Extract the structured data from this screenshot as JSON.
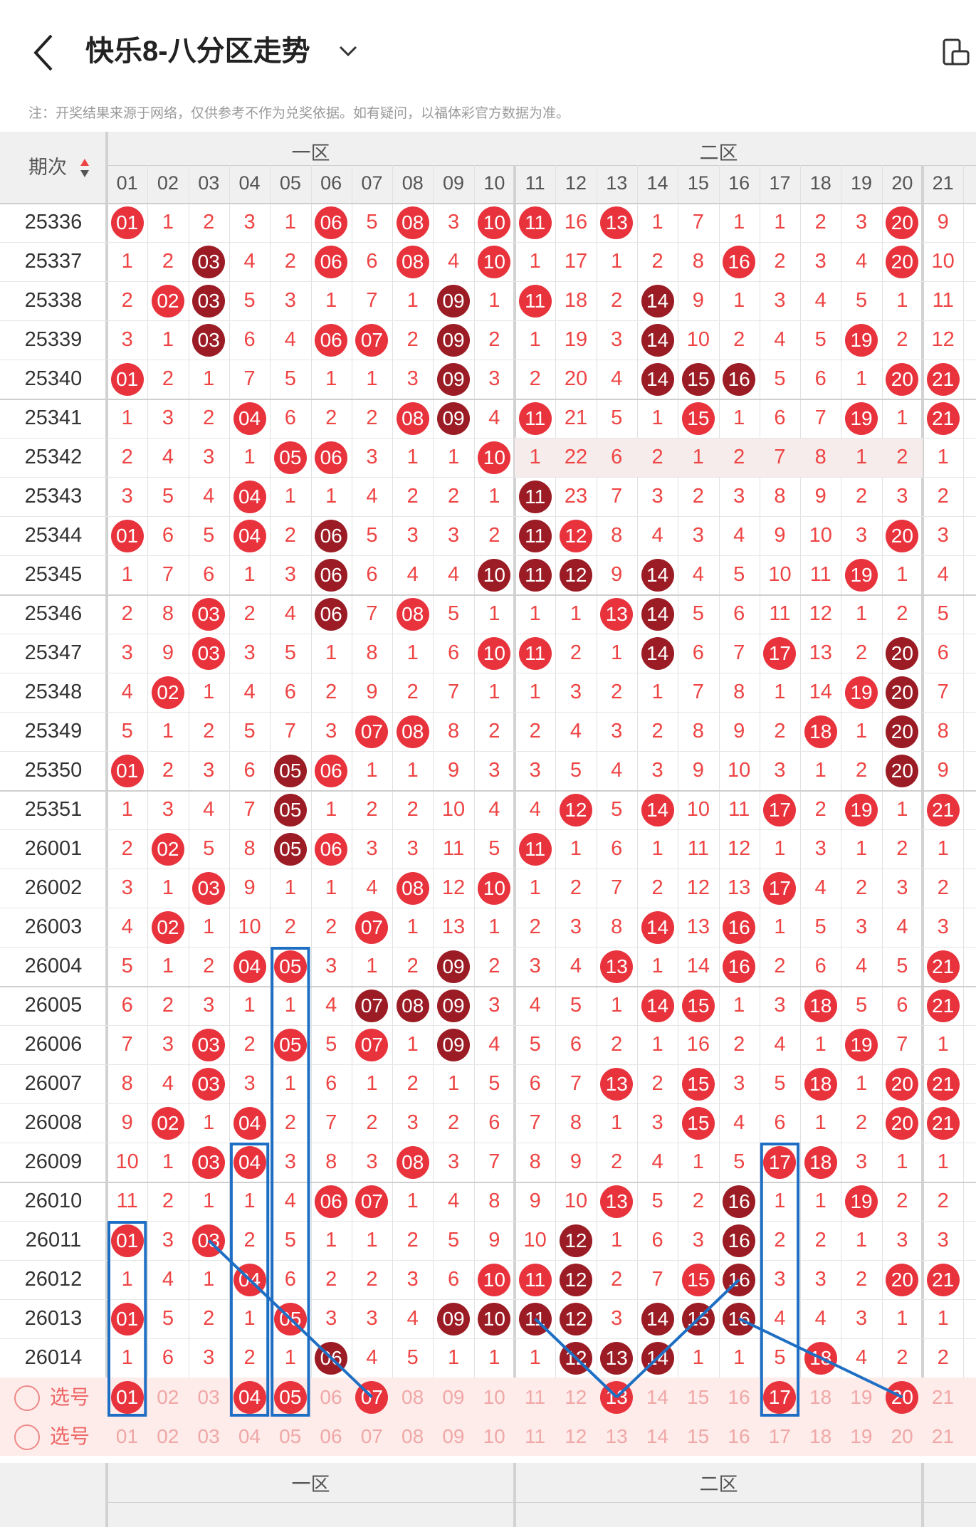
{
  "header": {
    "title": "快乐8-八分区走势",
    "note": "注：开奖结果来源于网络，仅供参考不作为兑奖依据。如有疑问，以福体彩官方数据为准。"
  },
  "table": {
    "period_label": "期次",
    "zone1_label": "一区",
    "zone2_label": "二区",
    "columns": [
      "01",
      "02",
      "03",
      "04",
      "05",
      "06",
      "07",
      "08",
      "09",
      "10",
      "11",
      "12",
      "13",
      "14",
      "15",
      "16",
      "17",
      "18",
      "19",
      "20",
      "21"
    ],
    "rows": [
      {
        "period": "25336",
        "cells": [
          "01",
          "1",
          "2",
          "3",
          "1",
          "06",
          "5",
          "08",
          "3",
          "10",
          "11",
          "16",
          "13",
          "1",
          "7",
          "1",
          "1",
          "2",
          "3",
          "20",
          "9"
        ]
      },
      {
        "period": "25337",
        "cells": [
          "1",
          "2",
          "03",
          "4",
          "2",
          "06",
          "6",
          "08",
          "4",
          "10",
          "1",
          "17",
          "1",
          "2",
          "8",
          "16",
          "2",
          "3",
          "4",
          "20",
          "10"
        ]
      },
      {
        "period": "25338",
        "cells": [
          "2",
          "02",
          "03",
          "5",
          "3",
          "1",
          "7",
          "1",
          "09",
          "1",
          "11",
          "18",
          "2",
          "14",
          "9",
          "1",
          "3",
          "4",
          "5",
          "1",
          "11"
        ]
      },
      {
        "period": "25339",
        "cells": [
          "3",
          "1",
          "03",
          "6",
          "4",
          "06",
          "07",
          "2",
          "09",
          "2",
          "1",
          "19",
          "3",
          "14",
          "10",
          "2",
          "4",
          "5",
          "19",
          "2",
          "12"
        ]
      },
      {
        "period": "25340",
        "cells": [
          "01",
          "2",
          "1",
          "7",
          "5",
          "1",
          "1",
          "3",
          "09",
          "3",
          "2",
          "20",
          "4",
          "14",
          "15",
          "16",
          "5",
          "6",
          "1",
          "20",
          "21"
        ]
      },
      {
        "period": "25341",
        "cells": [
          "1",
          "3",
          "2",
          "04",
          "6",
          "2",
          "2",
          "08",
          "09",
          "4",
          "11",
          "21",
          "5",
          "1",
          "15",
          "1",
          "6",
          "7",
          "19",
          "1",
          "21"
        ]
      },
      {
        "period": "25342",
        "cells": [
          "2",
          "4",
          "3",
          "1",
          "05",
          "06",
          "3",
          "1",
          "1",
          "10",
          "1",
          "22",
          "6",
          "2",
          "1",
          "2",
          "7",
          "8",
          "1",
          "2",
          "1"
        ]
      },
      {
        "period": "25343",
        "cells": [
          "3",
          "5",
          "4",
          "04",
          "1",
          "1",
          "4",
          "2",
          "2",
          "1",
          "11",
          "23",
          "7",
          "3",
          "2",
          "3",
          "8",
          "9",
          "2",
          "3",
          "2"
        ]
      },
      {
        "period": "25344",
        "cells": [
          "01",
          "6",
          "5",
          "04",
          "2",
          "06",
          "5",
          "3",
          "3",
          "2",
          "11",
          "12",
          "8",
          "4",
          "3",
          "4",
          "9",
          "10",
          "3",
          "20",
          "3"
        ]
      },
      {
        "period": "25345",
        "cells": [
          "1",
          "7",
          "6",
          "1",
          "3",
          "06",
          "6",
          "4",
          "4",
          "10",
          "11",
          "12",
          "9",
          "14",
          "4",
          "5",
          "10",
          "11",
          "19",
          "1",
          "4"
        ]
      },
      {
        "period": "25346",
        "cells": [
          "2",
          "8",
          "03",
          "2",
          "4",
          "06",
          "7",
          "08",
          "5",
          "1",
          "1",
          "1",
          "13",
          "14",
          "5",
          "6",
          "11",
          "12",
          "1",
          "2",
          "5"
        ]
      },
      {
        "period": "25347",
        "cells": [
          "3",
          "9",
          "03",
          "3",
          "5",
          "1",
          "8",
          "1",
          "6",
          "10",
          "11",
          "2",
          "1",
          "14",
          "6",
          "7",
          "17",
          "13",
          "2",
          "20",
          "6"
        ]
      },
      {
        "period": "25348",
        "cells": [
          "4",
          "02",
          "1",
          "4",
          "6",
          "2",
          "9",
          "2",
          "7",
          "1",
          "1",
          "3",
          "2",
          "1",
          "7",
          "8",
          "1",
          "14",
          "19",
          "20",
          "7"
        ]
      },
      {
        "period": "25349",
        "cells": [
          "5",
          "1",
          "2",
          "5",
          "7",
          "3",
          "07",
          "08",
          "8",
          "2",
          "2",
          "4",
          "3",
          "2",
          "8",
          "9",
          "2",
          "18",
          "1",
          "20",
          "8"
        ]
      },
      {
        "period": "25350",
        "cells": [
          "01",
          "2",
          "3",
          "6",
          "05",
          "06",
          "1",
          "1",
          "9",
          "3",
          "3",
          "5",
          "4",
          "3",
          "9",
          "10",
          "3",
          "1",
          "2",
          "20",
          "9"
        ]
      },
      {
        "period": "25351",
        "cells": [
          "1",
          "3",
          "4",
          "7",
          "05",
          "1",
          "2",
          "2",
          "10",
          "4",
          "4",
          "12",
          "5",
          "14",
          "10",
          "11",
          "17",
          "2",
          "19",
          "1",
          "21"
        ]
      },
      {
        "period": "26001",
        "cells": [
          "2",
          "02",
          "5",
          "8",
          "05",
          "06",
          "3",
          "3",
          "11",
          "5",
          "11",
          "1",
          "6",
          "1",
          "11",
          "12",
          "1",
          "3",
          "1",
          "2",
          "1"
        ]
      },
      {
        "period": "26002",
        "cells": [
          "3",
          "1",
          "03",
          "9",
          "1",
          "1",
          "4",
          "08",
          "12",
          "10",
          "1",
          "2",
          "7",
          "2",
          "12",
          "13",
          "17",
          "4",
          "2",
          "3",
          "2"
        ]
      },
      {
        "period": "26003",
        "cells": [
          "4",
          "02",
          "1",
          "10",
          "2",
          "2",
          "07",
          "1",
          "13",
          "1",
          "2",
          "3",
          "8",
          "14",
          "13",
          "16",
          "1",
          "5",
          "3",
          "4",
          "3"
        ]
      },
      {
        "period": "26004",
        "cells": [
          "5",
          "1",
          "2",
          "04",
          "05",
          "3",
          "1",
          "2",
          "09",
          "2",
          "3",
          "4",
          "13",
          "1",
          "14",
          "16",
          "2",
          "6",
          "4",
          "5",
          "21"
        ]
      },
      {
        "period": "26005",
        "cells": [
          "6",
          "2",
          "3",
          "1",
          "1",
          "4",
          "07",
          "08",
          "09",
          "3",
          "4",
          "5",
          "1",
          "14",
          "15",
          "1",
          "3",
          "18",
          "5",
          "6",
          "21"
        ]
      },
      {
        "period": "26006",
        "cells": [
          "7",
          "3",
          "03",
          "2",
          "05",
          "5",
          "07",
          "1",
          "09",
          "4",
          "5",
          "6",
          "2",
          "1",
          "16",
          "2",
          "4",
          "1",
          "19",
          "7",
          "1"
        ]
      },
      {
        "period": "26007",
        "cells": [
          "8",
          "4",
          "03",
          "3",
          "1",
          "6",
          "1",
          "2",
          "1",
          "5",
          "6",
          "7",
          "13",
          "2",
          "15",
          "3",
          "5",
          "18",
          "1",
          "20",
          "21"
        ]
      },
      {
        "period": "26008",
        "cells": [
          "9",
          "02",
          "1",
          "04",
          "2",
          "7",
          "2",
          "3",
          "2",
          "6",
          "7",
          "8",
          "1",
          "3",
          "15",
          "4",
          "6",
          "1",
          "2",
          "20",
          "21"
        ]
      },
      {
        "period": "26009",
        "cells": [
          "10",
          "1",
          "03",
          "04",
          "3",
          "8",
          "3",
          "08",
          "3",
          "7",
          "8",
          "9",
          "2",
          "4",
          "1",
          "5",
          "17",
          "18",
          "3",
          "1",
          "1"
        ]
      },
      {
        "period": "26010",
        "cells": [
          "11",
          "2",
          "1",
          "1",
          "4",
          "06",
          "07",
          "1",
          "4",
          "8",
          "9",
          "10",
          "13",
          "5",
          "2",
          "16",
          "1",
          "1",
          "19",
          "2",
          "2"
        ]
      },
      {
        "period": "26011",
        "cells": [
          "01",
          "3",
          "03",
          "2",
          "5",
          "1",
          "1",
          "2",
          "5",
          "9",
          "10",
          "12",
          "1",
          "6",
          "3",
          "16",
          "2",
          "2",
          "1",
          "3",
          "3"
        ]
      },
      {
        "period": "26012",
        "cells": [
          "1",
          "4",
          "1",
          "04",
          "6",
          "2",
          "2",
          "3",
          "6",
          "10",
          "11",
          "12",
          "2",
          "7",
          "15",
          "16",
          "3",
          "3",
          "2",
          "20",
          "21"
        ]
      },
      {
        "period": "26013",
        "cells": [
          "01",
          "5",
          "2",
          "1",
          "05",
          "3",
          "3",
          "4",
          "09",
          "10",
          "11",
          "12",
          "3",
          "14",
          "15",
          "16",
          "4",
          "4",
          "3",
          "1",
          "1"
        ]
      },
      {
        "period": "26014",
        "cells": [
          "1",
          "6",
          "3",
          "2",
          "1",
          "06",
          "4",
          "5",
          "1",
          "1",
          "1",
          "12",
          "13",
          "14",
          "1",
          "1",
          "5",
          "18",
          "4",
          "2",
          "2"
        ]
      }
    ],
    "dark_balls": [
      "25337-03",
      "25338-03",
      "25339-03",
      "25338-09",
      "25339-09",
      "25340-09",
      "25341-09",
      "25338-14",
      "25339-14",
      "25340-14",
      "25340-15",
      "25340-16",
      "25343-11",
      "25344-11",
      "25345-11",
      "25344-06",
      "25345-06",
      "25346-06",
      "25345-10",
      "25345-12",
      "25345-14",
      "25346-14",
      "25347-14",
      "25347-20",
      "25348-20",
      "25349-20",
      "25350-20",
      "25350-05",
      "25351-05",
      "26001-05",
      "26004-09",
      "26005-07",
      "26005-08",
      "26005-09",
      "26006-09",
      "26010-16",
      "26011-16",
      "26012-16",
      "26013-16",
      "26013-15",
      "26011-12",
      "26012-12",
      "26013-12",
      "26014-12",
      "26013-13",
      "26014-13",
      "26014-14",
      "26013-09",
      "26013-10",
      "26013-11",
      "26013-14",
      "26014-06"
    ],
    "selection_rows": [
      {
        "label": "选号",
        "values": [
          "01",
          "02",
          "03",
          "04",
          "05",
          "06",
          "07",
          "08",
          "09",
          "10",
          "11",
          "12",
          "13",
          "14",
          "15",
          "16",
          "17",
          "18",
          "19",
          "20",
          "21"
        ],
        "selected": [
          "01",
          "04",
          "05",
          "07",
          "13",
          "17",
          "20"
        ]
      },
      {
        "label": "选号",
        "values": [
          "01",
          "02",
          "03",
          "04",
          "05",
          "06",
          "07",
          "08",
          "09",
          "10",
          "11",
          "12",
          "13",
          "14",
          "15",
          "16",
          "17",
          "18",
          "19",
          "20",
          "21"
        ],
        "selected": []
      }
    ]
  },
  "colors": {
    "ball_red": "#e8333d",
    "ball_dark": "#9b1c24",
    "highlight_blue": "#1e6fc4"
  }
}
